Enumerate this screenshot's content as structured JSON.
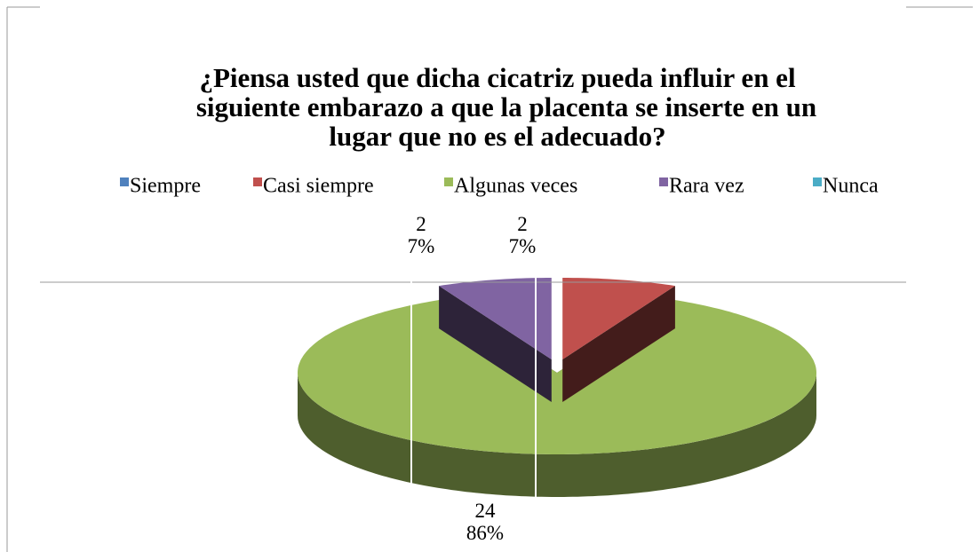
{
  "chart_data": {
    "type": "pie",
    "title": [
      "¿Piensa usted que dicha cicatriz pueda influir en el",
      "siguiente embarazo a que la placenta se inserte en un",
      "lugar que no es el adecuado?"
    ],
    "categories": [
      "Siempre",
      "Casi siempre",
      "Algunas veces",
      "Rara vez",
      "Nunca"
    ],
    "values": [
      0,
      2,
      24,
      2,
      0
    ],
    "percentages": [
      0,
      7,
      86,
      7,
      0
    ],
    "percentage_labels": [
      null,
      "7%",
      "86%",
      "7%",
      null
    ],
    "colors": [
      "#4f81bd",
      "#c0504d",
      "#9bbb59",
      "#8064a2",
      "#4bacc6"
    ],
    "legend": "top"
  }
}
